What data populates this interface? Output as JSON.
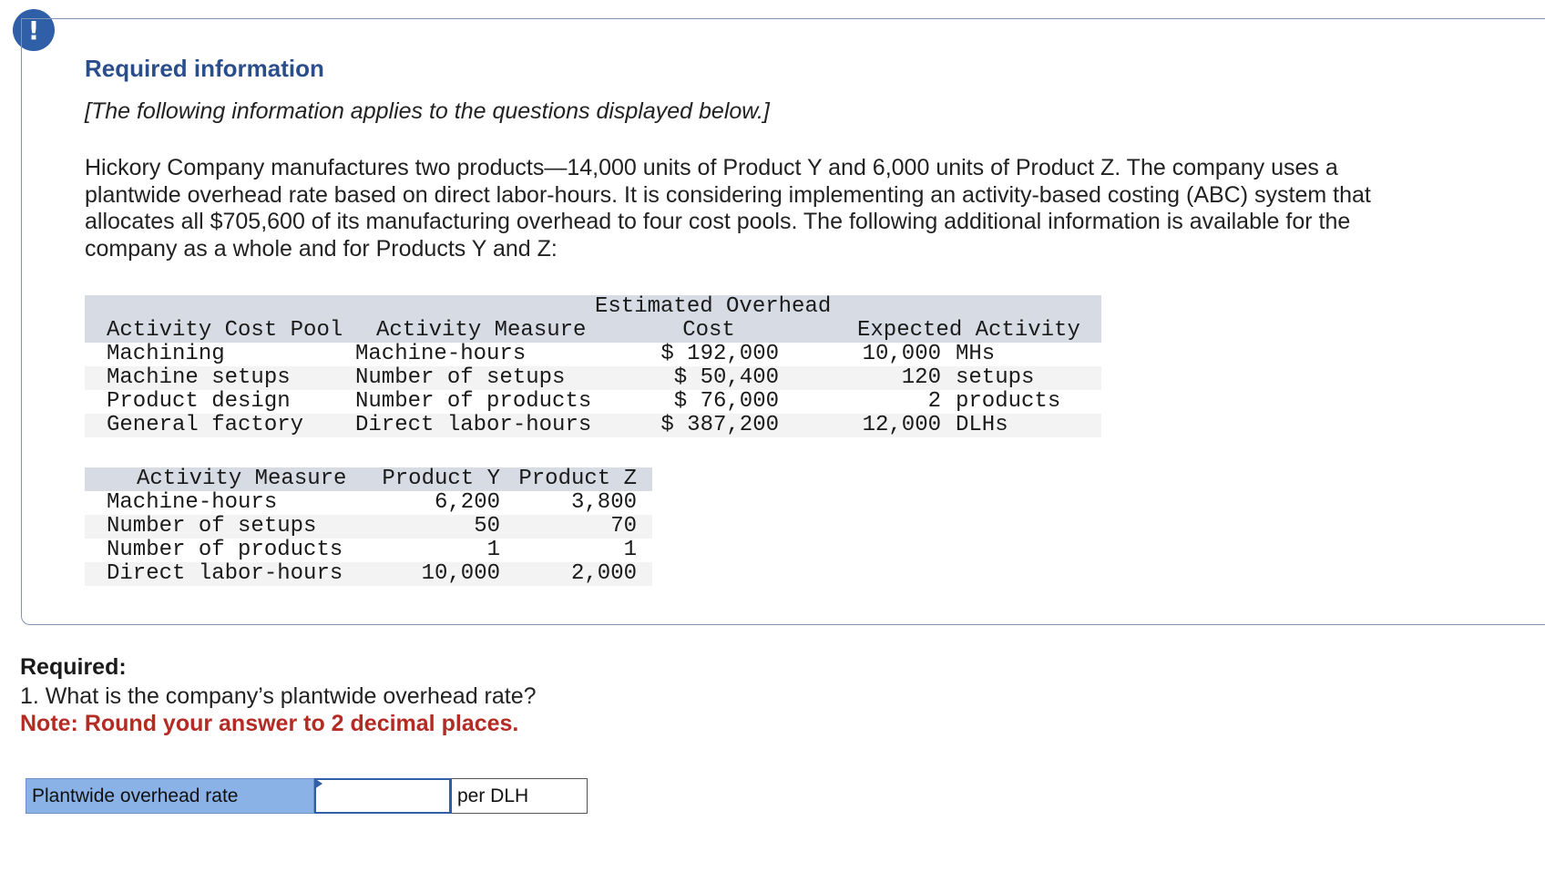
{
  "header": {
    "alert_icon": "!",
    "title": "Required information",
    "note": "[The following information applies to the questions displayed below.]"
  },
  "problem": {
    "text": "Hickory Company manufactures two products—14,000 units of Product Y and 6,000 units of Product Z. The company uses a plantwide overhead rate based on direct labor-hours. It is considering implementing an activity-based costing (ABC) system that allocates all $705,600 of its manufacturing overhead to four cost pools. The following additional information is available for the company as a whole and for Products Y and Z:"
  },
  "table1": {
    "headers": {
      "pool": "Activity Cost Pool",
      "measure": "Activity Measure",
      "cost_line1": "Estimated Overhead",
      "cost_line2": "Cost",
      "activity": "Expected Activity"
    },
    "rows": [
      {
        "pool": "Machining",
        "measure": "Machine-hours",
        "cost": "$ 192,000",
        "amount": "10,000",
        "unit": "MHs"
      },
      {
        "pool": "Machine setups",
        "measure": "Number of setups",
        "cost": "$ 50,400",
        "amount": "120",
        "unit": "setups"
      },
      {
        "pool": "Product design",
        "measure": "Number of products",
        "cost": "$ 76,000",
        "amount": "2",
        "unit": "products"
      },
      {
        "pool": "General factory",
        "measure": "Direct labor-hours",
        "cost": "$ 387,200",
        "amount": "12,000",
        "unit": "DLHs"
      }
    ]
  },
  "table2": {
    "headers": {
      "measure": "Activity Measure",
      "y": "Product Y",
      "z": "Product Z"
    },
    "rows": [
      {
        "measure": "Machine-hours",
        "y": "6,200",
        "z": "3,800"
      },
      {
        "measure": "Number of setups",
        "y": "50",
        "z": "70"
      },
      {
        "measure": "Number of products",
        "y": "1",
        "z": "1"
      },
      {
        "measure": "Direct labor-hours",
        "y": "10,000",
        "z": "2,000"
      }
    ]
  },
  "question": {
    "required_label": "Required:",
    "text": "1. What is the company’s plantwide overhead rate?",
    "note": "Note: Round your answer to 2 decimal places."
  },
  "answer": {
    "label": "Plantwide overhead rate",
    "value": "",
    "unit": "per DLH"
  }
}
